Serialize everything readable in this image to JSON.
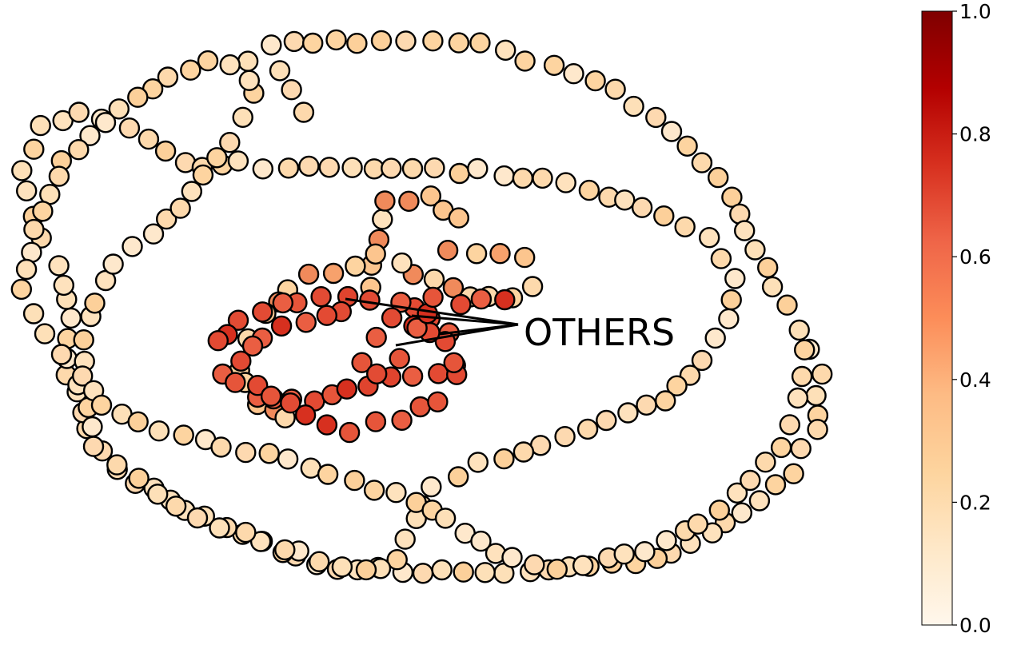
{
  "annotation": {
    "label": "OTHERS"
  },
  "colorbar": {
    "min": 0.0,
    "max": 1.0,
    "ticks": [
      "0.0",
      "0.2",
      "0.4",
      "0.6",
      "0.8",
      "1.0"
    ],
    "colormap": "OrRd",
    "stops": [
      "#fff7ec",
      "#fee8c8",
      "#fdd49e",
      "#fdbb84",
      "#fc8d59",
      "#ef6548",
      "#d7301f",
      "#b30000",
      "#7f0000"
    ]
  },
  "graph": {
    "node_edge_color": "#000000",
    "low_value_node_color": "#fdd7a8",
    "high_value_node_color": "#e34a33"
  }
}
